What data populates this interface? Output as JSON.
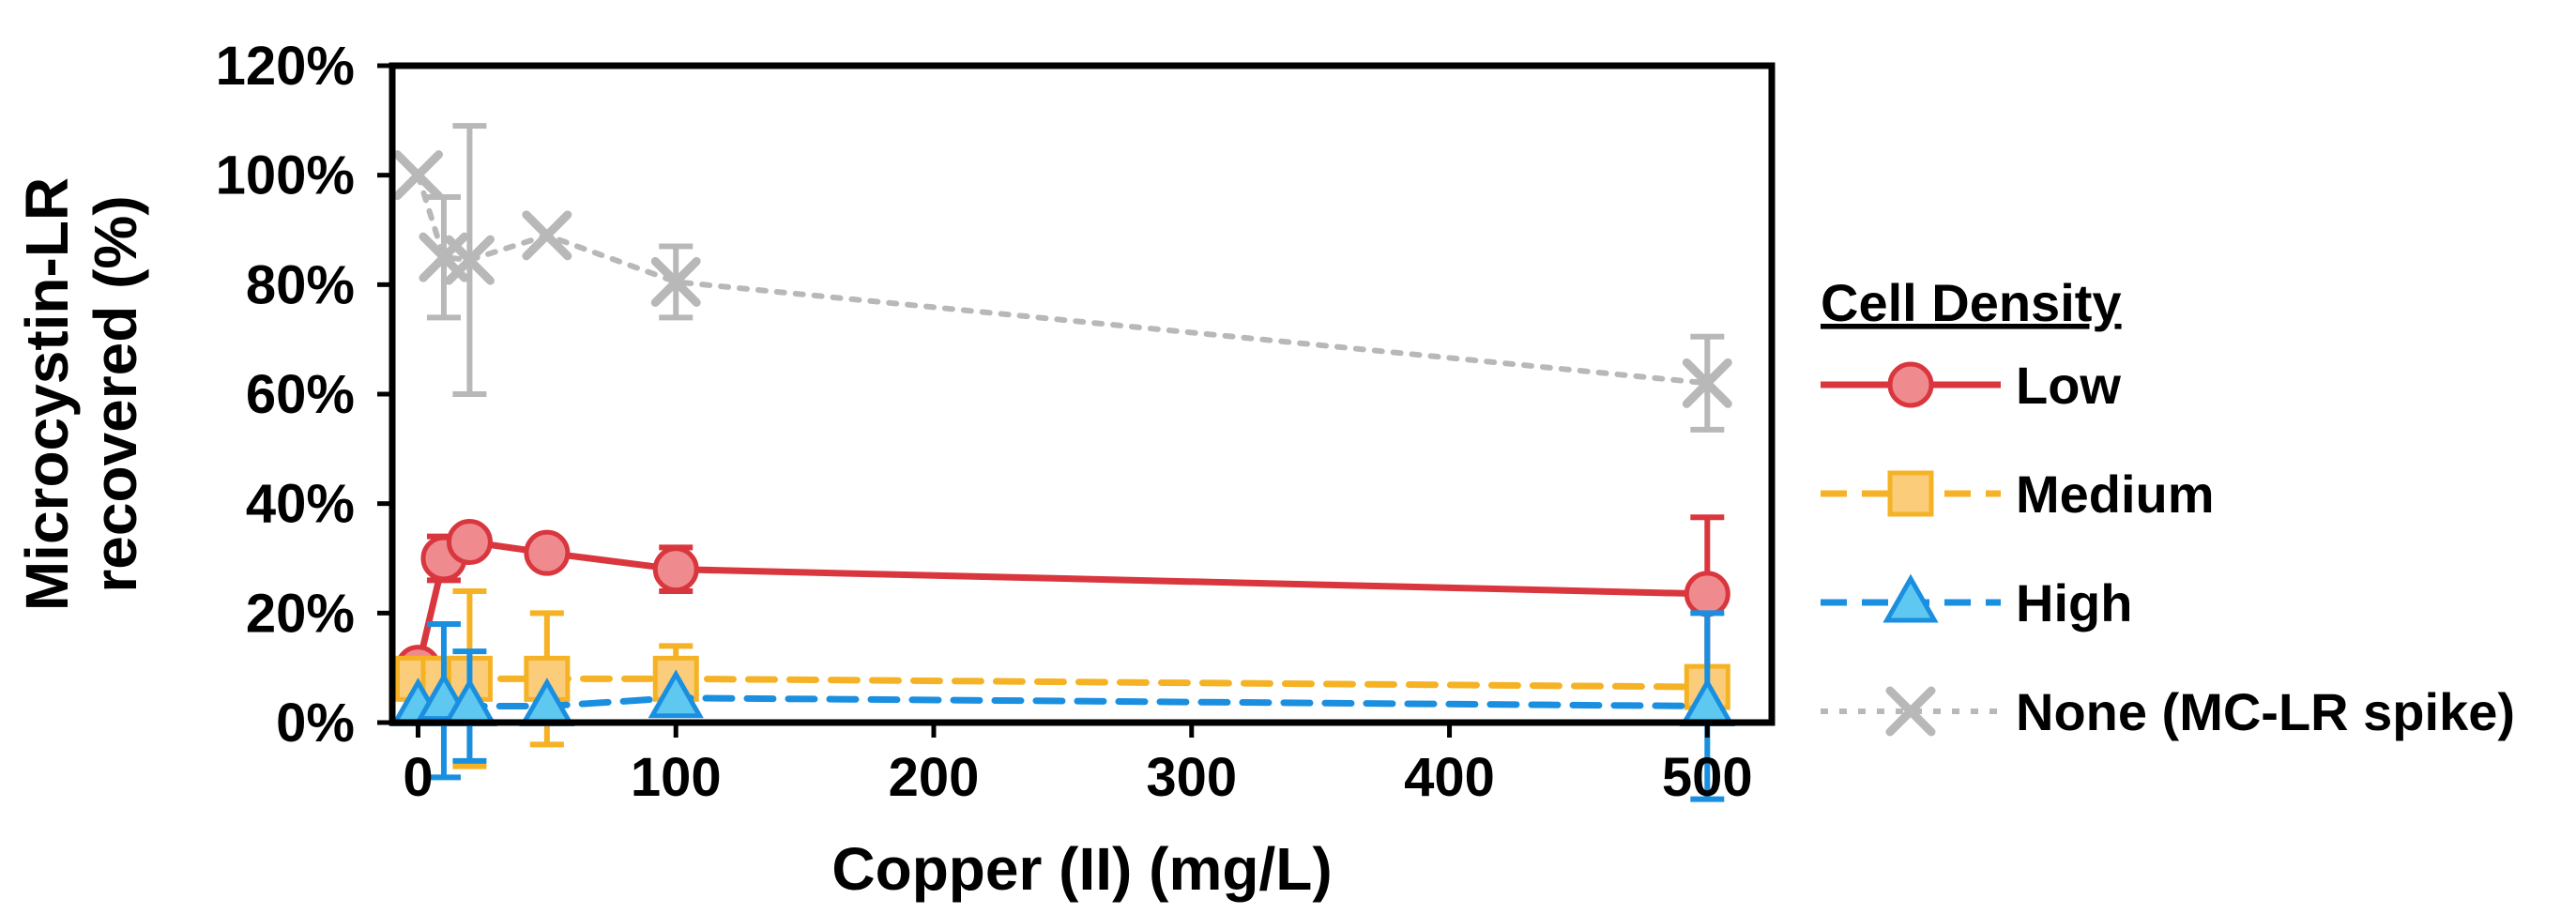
{
  "chart_data": {
    "type": "line",
    "xlabel": "Copper (II) (mg/L)",
    "ylabel": [
      "Microcystin-LR",
      "recovered (%)"
    ],
    "xlim": [
      -10,
      525
    ],
    "ylim": [
      0,
      1.2
    ],
    "xticks": [
      0,
      100,
      200,
      300,
      400,
      500
    ],
    "xtick_labels": [
      "0",
      "100",
      "200",
      "300",
      "400",
      "500"
    ],
    "yticks": [
      0,
      0.2,
      0.4,
      0.6,
      0.8,
      1.0,
      1.2
    ],
    "ytick_labels": [
      "0%",
      "20%",
      "40%",
      "60%",
      "80%",
      "100%",
      "120%"
    ],
    "grid": false,
    "legend_title": "Cell Density",
    "legend_position": "right",
    "series": [
      {
        "name": "Low",
        "color": "#d9363e",
        "fill": "#ef8a8e",
        "marker": "circle",
        "line": "solid",
        "x": [
          0,
          10,
          20,
          50,
          100,
          500
        ],
        "y": [
          0.1,
          0.3,
          0.33,
          0.31,
          0.28,
          0.235
        ],
        "err": [
          0.0,
          0.04,
          0.0,
          0.0,
          0.04,
          0.14
        ]
      },
      {
        "name": "Medium",
        "color": "#f5b225",
        "fill": "#fbcd7a",
        "marker": "square",
        "line": "dashed",
        "x": [
          0,
          10,
          20,
          50,
          100,
          500
        ],
        "y": [
          0.08,
          0.08,
          0.08,
          0.08,
          0.08,
          0.065
        ],
        "err": [
          0.0,
          0.0,
          0.16,
          0.12,
          0.06,
          0.0
        ]
      },
      {
        "name": "High",
        "color": "#1a8fe0",
        "fill": "#5ec8f0",
        "marker": "triangle",
        "line": "dashed",
        "x": [
          0,
          10,
          20,
          50,
          100,
          500
        ],
        "y": [
          0.03,
          0.04,
          0.03,
          0.03,
          0.045,
          0.03
        ],
        "err": [
          0.0,
          0.14,
          0.1,
          0.0,
          0.0,
          0.17
        ]
      },
      {
        "name": "None (MC-LR spike)",
        "color": "#b8b8b8",
        "fill": "#b8b8b8",
        "marker": "x",
        "line": "dotted",
        "x": [
          0,
          10,
          20,
          50,
          100,
          500
        ],
        "y": [
          1.0,
          0.85,
          0.845,
          0.89,
          0.805,
          0.62
        ],
        "err": [
          0.0,
          0.11,
          0.245,
          0.0,
          0.065,
          0.085
        ]
      }
    ]
  }
}
